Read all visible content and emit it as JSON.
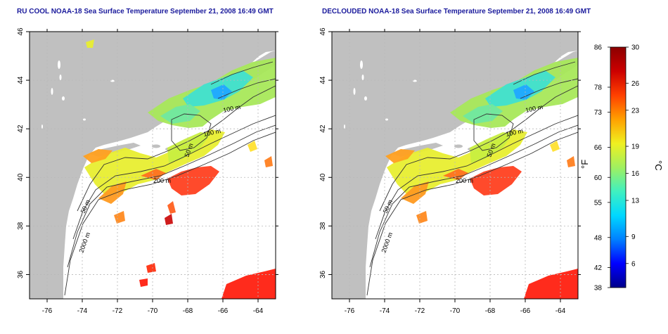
{
  "panels": [
    {
      "title": "RU COOL NOAA-18 Sea Surface Temperature September 21, 2008 16:49 GMT",
      "variant": "raw"
    },
    {
      "title": "DECLOUDED NOAA-18 Sea Surface Temperature September 21, 2008 16:49 GMT",
      "variant": "declouded"
    }
  ],
  "map_axes": {
    "lon_ticks": [
      "-76",
      "-74",
      "-72",
      "-70",
      "-68",
      "-66",
      "-64"
    ],
    "lat_ticks": [
      "36",
      "38",
      "40",
      "42",
      "44",
      "46"
    ]
  },
  "contour_labels": [
    "100 m",
    "100 m",
    "50 m",
    "200 m",
    "50 m",
    "2000 m"
  ],
  "colorbar": {
    "unit_f": "°F",
    "unit_c": "°C",
    "fahrenheit_ticks": [
      "86",
      "78",
      "73",
      "66",
      "60",
      "55",
      "48",
      "42",
      "38"
    ],
    "celsius_ticks": [
      "30",
      "26",
      "23",
      "19",
      "16",
      "13",
      "9",
      "6"
    ],
    "colors": [
      "#00008b",
      "#0000ff",
      "#0080ff",
      "#00d8ff",
      "#40f0c0",
      "#a0f060",
      "#f0f020",
      "#ffa000",
      "#ff4000",
      "#cc0000",
      "#8b0000"
    ]
  },
  "colors": {
    "land": "#c0c0c0",
    "ocean_bg": "#ffffff",
    "grid": "#b8b8b8",
    "title": "#1a1a9c",
    "contour": "#333333"
  }
}
